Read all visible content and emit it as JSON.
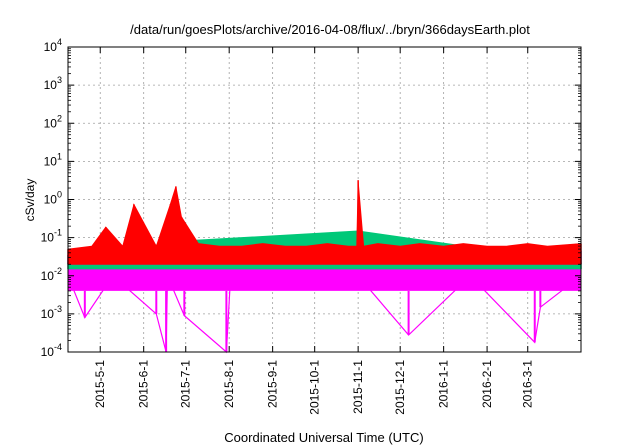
{
  "chart_data": {
    "type": "line",
    "title": "/data/run/goesPlots/archive/2016-04-08/flux/../bryn/366daysEarth.plot",
    "xlabel": "Coordinated Universal Time (UTC)",
    "ylabel": "cSv/day",
    "y_scale": "log",
    "ylim_exponent": [
      -4,
      4
    ],
    "xlim": [
      "2015-04-08",
      "2016-04-08"
    ],
    "y_ticks": [
      {
        "base": "10",
        "exp": "-4"
      },
      {
        "base": "10",
        "exp": "-3"
      },
      {
        "base": "10",
        "exp": "-2"
      },
      {
        "base": "10",
        "exp": "-1"
      },
      {
        "base": "10",
        "exp": "0"
      },
      {
        "base": "10",
        "exp": "1"
      },
      {
        "base": "10",
        "exp": "2"
      },
      {
        "base": "10",
        "exp": "3"
      },
      {
        "base": "10",
        "exp": "4"
      }
    ],
    "x_ticks": [
      {
        "label": "2015-5-1",
        "date": "2015-05-01"
      },
      {
        "label": "2015-6-1",
        "date": "2015-06-01"
      },
      {
        "label": "2015-7-1",
        "date": "2015-07-01"
      },
      {
        "label": "2015-8-1",
        "date": "2015-08-01"
      },
      {
        "label": "2015-9-1",
        "date": "2015-09-01"
      },
      {
        "label": "2015-10-1",
        "date": "2015-10-01"
      },
      {
        "label": "2015-11-1",
        "date": "2015-11-01"
      },
      {
        "label": "2015-12-1",
        "date": "2015-12-01"
      },
      {
        "label": "2016-1-1",
        "date": "2016-01-01"
      },
      {
        "label": "2016-2-1",
        "date": "2016-02-01"
      },
      {
        "label": "2016-3-1",
        "date": "2016-03-01"
      }
    ],
    "grid": true,
    "series": [
      {
        "color": "#ff0000",
        "x": [
          "2015-04-08",
          "2015-04-25",
          "2015-05-05",
          "2015-05-17",
          "2015-05-25",
          "2015-06-10",
          "2015-06-20",
          "2015-06-24",
          "2015-06-28",
          "2015-07-10",
          "2015-07-25",
          "2015-08-10",
          "2015-08-25",
          "2015-09-10",
          "2015-09-25",
          "2015-10-10",
          "2015-10-25",
          "2015-10-31",
          "2015-11-01",
          "2015-11-05",
          "2015-11-15",
          "2015-12-01",
          "2015-12-15",
          "2016-01-01",
          "2016-01-15",
          "2016-02-01",
          "2016-02-15",
          "2016-03-01",
          "2016-03-15",
          "2016-04-08"
        ],
        "y": [
          0.05,
          0.06,
          0.19,
          0.06,
          0.75,
          0.06,
          0.75,
          2.2,
          0.35,
          0.07,
          0.06,
          0.06,
          0.07,
          0.06,
          0.06,
          0.07,
          0.06,
          0.06,
          3.2,
          0.06,
          0.07,
          0.06,
          0.07,
          0.06,
          0.07,
          0.06,
          0.06,
          0.07,
          0.06,
          0.07
        ]
      },
      {
        "color": "#1a6fff",
        "x": [
          "2015-04-08",
          "2015-04-25",
          "2015-05-05",
          "2015-05-17",
          "2015-05-25",
          "2015-06-10",
          "2015-06-20",
          "2015-06-24",
          "2015-06-28",
          "2015-07-10",
          "2015-07-25",
          "2015-08-10",
          "2015-08-25",
          "2015-09-10",
          "2015-09-25",
          "2015-10-10",
          "2015-10-25",
          "2015-10-31",
          "2015-11-01",
          "2015-11-05",
          "2015-11-15",
          "2015-12-01",
          "2015-12-15",
          "2016-01-01",
          "2016-01-15",
          "2016-02-01",
          "2016-02-15",
          "2016-03-01",
          "2016-03-15",
          "2016-04-08"
        ],
        "y": [
          0.035,
          0.04,
          0.1,
          0.04,
          0.3,
          0.04,
          0.3,
          0.6,
          0.2,
          0.045,
          0.04,
          0.04,
          0.045,
          0.04,
          0.04,
          0.045,
          0.04,
          0.04,
          1.0,
          0.04,
          0.045,
          0.04,
          0.045,
          0.04,
          0.045,
          0.04,
          0.04,
          0.045,
          0.04,
          0.045
        ]
      },
      {
        "color": "#00c878",
        "x": [
          "2015-04-08",
          "2015-05-25",
          "2015-06-24",
          "2015-11-01",
          "2016-04-08"
        ],
        "y": [
          0.022,
          0.05,
          0.08,
          0.15,
          0.022
        ]
      },
      {
        "color": "#ff00ff",
        "x": [
          "2015-04-08",
          "2015-04-20",
          "2015-05-10",
          "2015-06-10",
          "2015-06-17",
          "2015-06-18",
          "2015-06-30",
          "2015-07-30",
          "2015-08-02",
          "2015-09-15",
          "2015-11-01",
          "2015-12-07",
          "2016-01-20",
          "2016-03-06",
          "2016-03-10",
          "2016-04-08"
        ],
        "y": [
          0.01,
          0.0008,
          0.01,
          0.001,
          0.0001,
          0.01,
          0.0009,
          0.0001,
          0.01,
          0.01,
          0.01,
          0.00028,
          0.01,
          0.00018,
          0.0015,
          0.01
        ]
      }
    ]
  }
}
